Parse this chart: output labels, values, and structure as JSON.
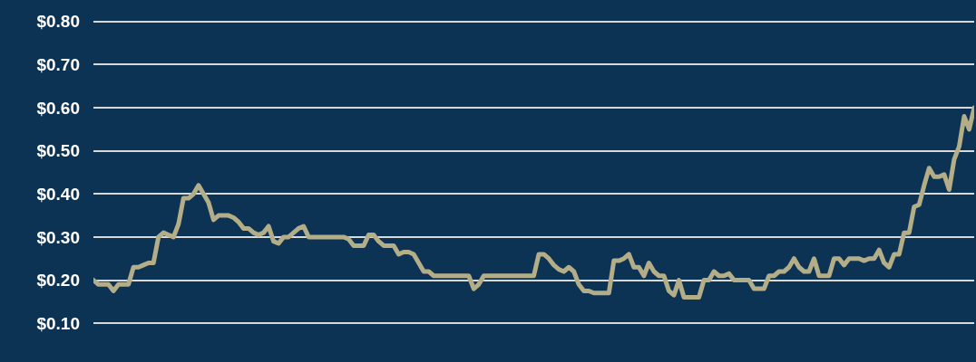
{
  "chart_data": {
    "type": "line",
    "relative": false,
    "categories": [
      null,
      null,
      null,
      null,
      null,
      null,
      null,
      null,
      null,
      null,
      null,
      null,
      null,
      null,
      null,
      null,
      null,
      null,
      null,
      null,
      null,
      null,
      null,
      null,
      null,
      null,
      null,
      null,
      null,
      null,
      null,
      null,
      null,
      null,
      null,
      null,
      null,
      null,
      null,
      null,
      null,
      null,
      null,
      null,
      null,
      null,
      null,
      null,
      null,
      null,
      null,
      null,
      null,
      null,
      null,
      null,
      null,
      null,
      null,
      null,
      null,
      null,
      null,
      null,
      null,
      null,
      null,
      null,
      null,
      null,
      null,
      null,
      null,
      null,
      null,
      null,
      null,
      null,
      null,
      null,
      null,
      null,
      null,
      null,
      null,
      null,
      null,
      null,
      null,
      null,
      null,
      null,
      null,
      null,
      null,
      null,
      null,
      null,
      null,
      null,
      null,
      null,
      null,
      null,
      null,
      null,
      null,
      null,
      null,
      null,
      null,
      null,
      null,
      null,
      null,
      null,
      null,
      null,
      null,
      null,
      null,
      null,
      null,
      null,
      null,
      null,
      null,
      null,
      null,
      null,
      null,
      null,
      null,
      null,
      null,
      null,
      null,
      null,
      null,
      null,
      null,
      null,
      null,
      null,
      null,
      null,
      null,
      null,
      null,
      null,
      null,
      null,
      null,
      null,
      null,
      null,
      null,
      null,
      null,
      null,
      null,
      null,
      null,
      null,
      null,
      null,
      null,
      null,
      null,
      null,
      null,
      null,
      null,
      null,
      null,
      null,
      null
    ],
    "series": [
      {
        "color": "#b3ae88",
        "values": [
          0.2,
          0.19,
          0.19,
          0.19,
          0.175,
          0.19,
          0.19,
          0.19,
          0.23,
          0.23,
          0.235,
          0.24,
          0.24,
          0.3,
          0.31,
          0.305,
          0.3,
          0.33,
          0.39,
          0.39,
          0.4,
          0.42,
          0.4,
          0.38,
          0.34,
          0.35,
          0.35,
          0.35,
          0.345,
          0.335,
          0.32,
          0.32,
          0.31,
          0.305,
          0.31,
          0.325,
          0.29,
          0.285,
          0.3,
          0.3,
          0.31,
          0.32,
          0.325,
          0.3,
          0.3,
          0.3,
          0.3,
          0.3,
          0.3,
          0.3,
          0.3,
          0.295,
          0.28,
          0.28,
          0.28,
          0.305,
          0.305,
          0.29,
          0.28,
          0.28,
          0.28,
          0.26,
          0.265,
          0.265,
          0.26,
          0.24,
          0.22,
          0.22,
          0.21,
          0.21,
          0.21,
          0.21,
          0.21,
          0.21,
          0.21,
          0.21,
          0.18,
          0.19,
          0.21,
          0.21,
          0.21,
          0.21,
          0.21,
          0.21,
          0.21,
          0.21,
          0.21,
          0.21,
          0.21,
          0.26,
          0.26,
          0.25,
          0.235,
          0.225,
          0.22,
          0.23,
          0.22,
          0.19,
          0.175,
          0.175,
          0.17,
          0.17,
          0.17,
          0.17,
          0.245,
          0.245,
          0.25,
          0.26,
          0.23,
          0.23,
          0.21,
          0.24,
          0.22,
          0.21,
          0.21,
          0.175,
          0.165,
          0.2,
          0.16,
          0.16,
          0.16,
          0.16,
          0.2,
          0.2,
          0.22,
          0.21,
          0.21,
          0.215,
          0.2,
          0.2,
          0.2,
          0.2,
          0.18,
          0.18,
          0.18,
          0.21,
          0.21,
          0.22,
          0.22,
          0.23,
          0.25,
          0.23,
          0.22,
          0.22,
          0.25,
          0.21,
          0.21,
          0.21,
          0.25,
          0.25,
          0.235,
          0.25,
          0.25,
          0.25,
          0.245,
          0.25,
          0.25,
          0.27,
          0.24,
          0.23,
          0.26,
          0.26,
          0.31,
          0.31,
          0.37,
          0.375,
          0.42,
          0.46,
          0.44,
          0.44,
          0.445,
          0.41,
          0.48,
          0.51,
          0.58,
          0.55,
          0.6
        ]
      }
    ],
    "ylim": [
      0.01,
      0.85
    ],
    "yticks": [
      {
        "value": 0.1,
        "label": "$0.10"
      },
      {
        "value": 0.2,
        "label": "$0.20"
      },
      {
        "value": 0.3,
        "label": "$0.30"
      },
      {
        "value": 0.4,
        "label": "$0.40"
      },
      {
        "value": 0.5,
        "label": "$0.50"
      },
      {
        "value": 0.6,
        "label": "$0.60"
      },
      {
        "value": 0.7,
        "label": "$0.70"
      },
      {
        "value": 0.8,
        "label": "$0.80"
      }
    ],
    "grid": "y",
    "tick_labels": "y",
    "marker": "none",
    "line_style": "solid"
  }
}
